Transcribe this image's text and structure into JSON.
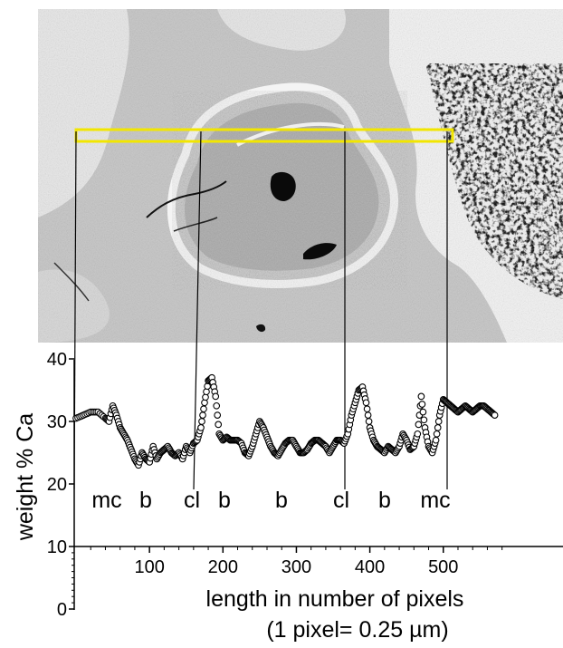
{
  "figure": {
    "colors": {
      "scan_box": "#f2e600",
      "section_bright": "#f4f4f4",
      "section_mid": "#c4c4c4",
      "section_dark": "#8a8a8a",
      "pore": "#0a0a0a",
      "axis": "#000000"
    }
  },
  "chart_data": {
    "type": "scatter",
    "title": "",
    "xlabel": "length in number of pixels",
    "xlabel_note": "(1 pixel= 0.25 µm)",
    "ylabel": "weight % Ca",
    "xlim": [
      0,
      580
    ],
    "ylim": [
      0,
      40
    ],
    "x_ticks": [
      100,
      200,
      300,
      400,
      500
    ],
    "y_ticks": [
      0,
      10,
      20,
      30,
      40
    ],
    "grid": false,
    "marker": "open-circle",
    "series": [
      {
        "x": [
          0,
          10,
          20,
          30,
          40,
          45,
          50,
          55,
          60,
          65,
          70,
          75,
          80,
          85,
          90,
          95,
          100,
          105,
          110,
          115,
          120,
          125,
          130,
          135,
          140,
          145,
          150,
          155,
          160,
          165,
          170,
          175,
          180,
          185,
          190,
          195,
          200,
          205,
          210,
          215,
          220,
          225,
          230,
          235,
          240,
          245,
          250,
          255,
          260,
          265,
          270,
          275,
          280,
          285,
          290,
          295,
          300,
          305,
          310,
          315,
          320,
          325,
          330,
          335,
          340,
          345,
          350,
          355,
          360,
          365,
          370,
          375,
          380,
          385,
          390,
          395,
          400,
          405,
          410,
          415,
          420,
          425,
          430,
          435,
          440,
          445,
          450,
          455,
          460,
          465,
          470,
          475,
          480,
          485,
          490,
          495,
          500,
          505,
          510,
          515,
          520,
          525,
          530,
          535,
          540,
          545,
          550,
          555,
          560,
          565,
          570
        ],
        "y": [
          30.5,
          31,
          31.5,
          31.5,
          30.5,
          30,
          32.5,
          31,
          29,
          28,
          27,
          25.5,
          24,
          23,
          25,
          24,
          23.5,
          26,
          24,
          25,
          25.5,
          26,
          25,
          24.5,
          25,
          24,
          26,
          25,
          26.5,
          27,
          29,
          33,
          36.5,
          37,
          34,
          28,
          27,
          27.5,
          27,
          27,
          27,
          26.5,
          25,
          24.5,
          26,
          28,
          30,
          29,
          27.5,
          26,
          25,
          24.5,
          25.5,
          26.5,
          27,
          27,
          26,
          25,
          25,
          25.5,
          26.5,
          27,
          27,
          26.5,
          26,
          25,
          26,
          27,
          27,
          26.5,
          28,
          31,
          33,
          35,
          35.5,
          33,
          29,
          27,
          26,
          25.5,
          25,
          26,
          25.5,
          25,
          26,
          28,
          27,
          25.5,
          26,
          28,
          34,
          29,
          26,
          25,
          27,
          31,
          33.5,
          33,
          32.5,
          32,
          31.5,
          32,
          32.5,
          32,
          31.5,
          32,
          32.5,
          32.5,
          32,
          31.5,
          31
        ]
      }
    ],
    "region_labels": [
      {
        "text": "mc",
        "x": 20,
        "y": 20
      },
      {
        "text": "b",
        "x": 100,
        "y": 20
      },
      {
        "text": "cl",
        "x": 190,
        "y": 20
      },
      {
        "text": "b",
        "x": 255,
        "y": 20
      },
      {
        "text": "b",
        "x": 335,
        "y": 20
      },
      {
        "text": "cl",
        "x": 435,
        "y": 20
      },
      {
        "text": "b",
        "x": 505,
        "y": 20
      },
      {
        "text": "mc",
        "x": 570,
        "y": 20
      }
    ],
    "correlation_lines_x": [
      0,
      192,
      410,
      575
    ]
  }
}
